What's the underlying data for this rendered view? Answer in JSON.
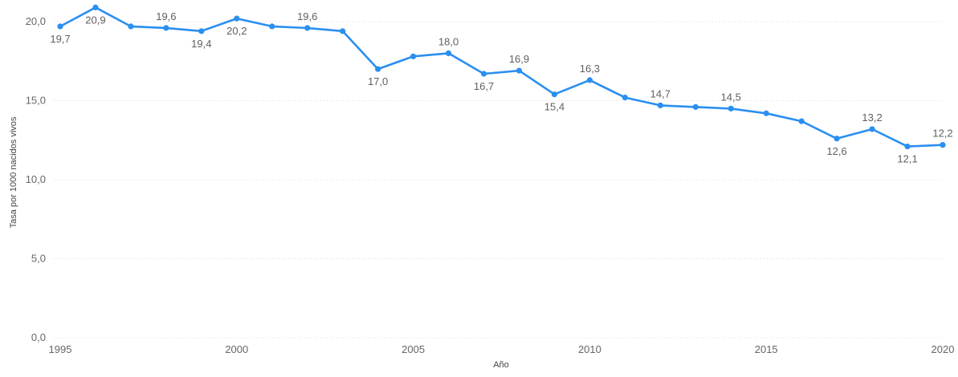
{
  "chart_data": {
    "type": "line",
    "title": "",
    "xlabel": "Año",
    "ylabel": "Tasa por 1000 nacidos vivos",
    "x": [
      1995,
      1996,
      1997,
      1998,
      1999,
      2000,
      2001,
      2002,
      2003,
      2004,
      2005,
      2006,
      2007,
      2008,
      2009,
      2010,
      2011,
      2012,
      2013,
      2014,
      2015,
      2016,
      2017,
      2018,
      2019,
      2020
    ],
    "series": [
      {
        "values": [
          19.7,
          20.9,
          19.7,
          19.6,
          19.4,
          20.2,
          19.7,
          19.6,
          19.4,
          17.0,
          17.8,
          18.0,
          16.7,
          16.9,
          15.4,
          16.3,
          15.2,
          14.7,
          14.6,
          14.5,
          14.2,
          13.7,
          12.6,
          13.2,
          12.1,
          12.2
        ],
        "color": "#2b8ff0"
      }
    ],
    "x_ticks": [
      1995,
      2000,
      2005,
      2010,
      2015,
      2020
    ],
    "y_ticks": [
      "0,0",
      "5,0",
      "10,0",
      "15,0",
      "20,0"
    ],
    "ylim": [
      0,
      21
    ],
    "xlim": [
      1995,
      2020
    ],
    "grid": true,
    "data_labels": [
      {
        "x": 1995,
        "text": "19,7",
        "pos": "below"
      },
      {
        "x": 1996,
        "text": "20,9",
        "pos": "below"
      },
      {
        "x": 1998,
        "text": "19,6",
        "pos": "above"
      },
      {
        "x": 1999,
        "text": "19,4",
        "pos": "below"
      },
      {
        "x": 2000,
        "text": "20,2",
        "pos": "below"
      },
      {
        "x": 2002,
        "text": "19,6",
        "pos": "above"
      },
      {
        "x": 2004,
        "text": "17,0",
        "pos": "below"
      },
      {
        "x": 2006,
        "text": "18,0",
        "pos": "above"
      },
      {
        "x": 2007,
        "text": "16,7",
        "pos": "below"
      },
      {
        "x": 2008,
        "text": "16,9",
        "pos": "above"
      },
      {
        "x": 2009,
        "text": "15,4",
        "pos": "below"
      },
      {
        "x": 2010,
        "text": "16,3",
        "pos": "above"
      },
      {
        "x": 2012,
        "text": "14,7",
        "pos": "above"
      },
      {
        "x": 2014,
        "text": "14,5",
        "pos": "above"
      },
      {
        "x": 2017,
        "text": "12,6",
        "pos": "below"
      },
      {
        "x": 2018,
        "text": "13,2",
        "pos": "above"
      },
      {
        "x": 2019,
        "text": "12,1",
        "pos": "below"
      },
      {
        "x": 2020,
        "text": "12,2",
        "pos": "above"
      }
    ]
  }
}
